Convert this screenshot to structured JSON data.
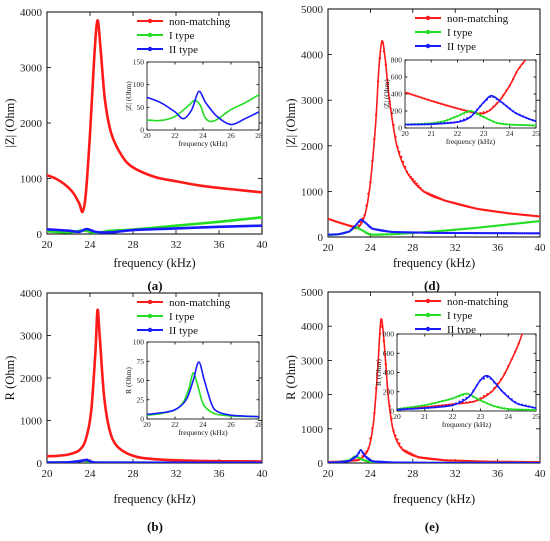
{
  "colors": {
    "non_matching": "#ff1a1a",
    "i_type": "#22dd22",
    "ii_type": "#1a1aff"
  },
  "chart_data": [
    {
      "panel": "(a)",
      "type": "line",
      "xlabel": "frequency (kHz)",
      "ylabel": "|Z| (Ohm)",
      "xlim": [
        20,
        40
      ],
      "ylim": [
        0,
        4000
      ],
      "xticks": [
        20,
        24,
        28,
        32,
        36,
        40
      ],
      "yticks": [
        0,
        1000,
        2000,
        3000,
        4000
      ],
      "legend": "top-right",
      "markers": false,
      "series": [
        {
          "name": "non-matching",
          "x": [
            20,
            20.8,
            21.6,
            22.4,
            23.0,
            23.3,
            23.6,
            24.0,
            24.4,
            24.7,
            25.0,
            25.4,
            26,
            27,
            28,
            30,
            32,
            34,
            36,
            38,
            40
          ],
          "values": [
            1060,
            1000,
            900,
            750,
            550,
            400,
            700,
            1800,
            3200,
            3850,
            3300,
            2400,
            1800,
            1400,
            1200,
            1030,
            950,
            880,
            830,
            790,
            750
          ]
        },
        {
          "name": "I type",
          "x": [
            20,
            22,
            23.4,
            24.5,
            26,
            28,
            32,
            36,
            40
          ],
          "values": [
            50,
            30,
            65,
            20,
            60,
            80,
            150,
            220,
            300
          ]
        },
        {
          "name": "II type",
          "x": [
            20,
            22,
            23.0,
            23.7,
            24.6,
            26,
            28,
            32,
            36,
            40
          ],
          "values": [
            85,
            60,
            40,
            90,
            35,
            30,
            70,
            100,
            130,
            150
          ]
        }
      ],
      "inset": {
        "xlabel": "frequency (kHz)",
        "ylabel": "|Z| (Ohm)",
        "xlim": [
          20,
          28
        ],
        "ylim": [
          0,
          150
        ],
        "xticks": [
          20,
          22,
          24,
          26,
          28
        ],
        "yticks": [
          0,
          50,
          100,
          150
        ],
        "series": [
          {
            "name": "I type",
            "x": [
              20,
              21,
              22,
              23,
              23.4,
              23.8,
              24.2,
              24.8,
              26,
              27,
              28
            ],
            "values": [
              22,
              21,
              30,
              55,
              65,
              55,
              25,
              20,
              45,
              60,
              78
            ]
          },
          {
            "name": "II type",
            "x": [
              20,
              21,
              22,
              22.6,
              23.2,
              23.7,
              24.2,
              25,
              26,
              27,
              28
            ],
            "values": [
              72,
              60,
              40,
              25,
              45,
              85,
              60,
              30,
              12,
              25,
              40
            ]
          }
        ]
      }
    },
    {
      "panel": "(d)",
      "type": "line",
      "xlabel": "frequency (kHz)",
      "ylabel": "|Z| (Ohm)",
      "xlim": [
        20,
        40
      ],
      "ylim": [
        0,
        5000
      ],
      "xticks": [
        20,
        24,
        28,
        32,
        36,
        40
      ],
      "yticks": [
        0,
        1000,
        2000,
        3000,
        4000,
        5000
      ],
      "legend": "top-right",
      "markers": true,
      "series": [
        {
          "name": "non-matching",
          "x": [
            20,
            21,
            22,
            22.8,
            23.5,
            24,
            24.5,
            24.8,
            25.1,
            25.4,
            25.8,
            26.5,
            27.5,
            29,
            31,
            34,
            37,
            40
          ],
          "values": [
            400,
            320,
            250,
            200,
            500,
            1200,
            2500,
            3700,
            4300,
            3900,
            3000,
            2000,
            1400,
            1000,
            800,
            620,
            520,
            450
          ]
        },
        {
          "name": "I type",
          "x": [
            20,
            21,
            22,
            22.6,
            23.2,
            24,
            26,
            30,
            34,
            40
          ],
          "values": [
            40,
            60,
            120,
            220,
            150,
            50,
            60,
            120,
            200,
            350
          ]
        },
        {
          "name": "II type",
          "x": [
            20,
            21,
            22,
            22.6,
            23.1,
            23.6,
            24.2,
            26,
            30,
            34,
            40
          ],
          "values": [
            50,
            60,
            120,
            250,
            380,
            300,
            180,
            110,
            90,
            85,
            80
          ]
        }
      ],
      "inset": {
        "xlabel": "frequency (kHz)",
        "ylabel": "|Z| (Ohm)",
        "xlim": [
          20,
          25
        ],
        "ylim": [
          0,
          800
        ],
        "xticks": [
          20,
          21,
          22,
          23,
          24,
          25
        ],
        "yticks": [
          0,
          200,
          400,
          600,
          800
        ],
        "series": [
          {
            "name": "non-matching",
            "x": [
              20,
              21,
              22,
              22.8,
              23.2,
              23.6,
              24,
              24.3,
              24.6
            ],
            "values": [
              420,
              320,
              230,
              170,
              200,
              320,
              500,
              680,
              800
            ]
          },
          {
            "name": "I type",
            "x": [
              20,
              21,
              21.5,
              22,
              22.5,
              23,
              23.5,
              24,
              25
            ],
            "values": [
              40,
              55,
              80,
              140,
              200,
              130,
              60,
              40,
              30
            ]
          },
          {
            "name": "II type",
            "x": [
              20,
              21,
              22,
              22.5,
              23.0,
              23.3,
              23.7,
              24.2,
              24.7,
              25
            ],
            "values": [
              40,
              45,
              70,
              130,
              300,
              380,
              300,
              180,
              110,
              80
            ]
          }
        ]
      }
    },
    {
      "panel": "(b)",
      "type": "line",
      "xlabel": "frequency (kHz)",
      "ylabel": "R (Ohm)",
      "xlim": [
        20,
        40
      ],
      "ylim": [
        0,
        4000
      ],
      "xticks": [
        20,
        24,
        28,
        32,
        36,
        40
      ],
      "yticks": [
        0,
        1000,
        2000,
        3000,
        4000
      ],
      "legend": "top-right",
      "markers": false,
      "series": [
        {
          "name": "non-matching",
          "x": [
            20,
            21,
            22,
            23,
            23.6,
            24.1,
            24.5,
            24.7,
            24.9,
            25.3,
            25.8,
            26.5,
            28,
            30,
            34,
            40
          ],
          "values": [
            160,
            170,
            200,
            300,
            550,
            1200,
            2600,
            3600,
            3000,
            1600,
            800,
            400,
            170,
            90,
            50,
            35
          ]
        },
        {
          "name": "I type",
          "x": [
            20,
            22,
            23.2,
            23.5,
            24,
            26,
            40
          ],
          "values": [
            10,
            15,
            50,
            60,
            20,
            8,
            5
          ]
        },
        {
          "name": "II type",
          "x": [
            20,
            22,
            23.4,
            23.7,
            24.2,
            26,
            40
          ],
          "values": [
            10,
            15,
            60,
            75,
            25,
            8,
            5
          ]
        }
      ],
      "inset": {
        "xlabel": "frequency (kHz)",
        "ylabel": "R (Ohm)",
        "xlim": [
          20,
          28
        ],
        "ylim": [
          0,
          100
        ],
        "xticks": [
          20,
          22,
          24,
          26,
          28
        ],
        "yticks": [
          0,
          25,
          50,
          75,
          100
        ],
        "series": [
          {
            "name": "I type",
            "x": [
              20,
              21,
              22,
              22.6,
              23.0,
              23.3,
              23.6,
              24.0,
              24.5,
              25,
              26,
              28
            ],
            "values": [
              5,
              7,
              12,
              22,
              40,
              60,
              45,
              20,
              10,
              6,
              4,
              3
            ]
          },
          {
            "name": "II type",
            "x": [
              20,
              21,
              22,
              22.8,
              23.3,
              23.7,
              24.1,
              24.6,
              25,
              26,
              28
            ],
            "values": [
              6,
              8,
              12,
              25,
              50,
              74,
              50,
              20,
              10,
              5,
              3
            ]
          }
        ]
      }
    },
    {
      "panel": "(e)",
      "type": "line",
      "xlabel": "frequency (kHz)",
      "ylabel": "R (Ohm)",
      "xlim": [
        20,
        40
      ],
      "ylim": [
        0,
        5000
      ],
      "xticks": [
        20,
        24,
        28,
        32,
        36,
        40
      ],
      "yticks": [
        0,
        1000,
        2000,
        3000,
        4000,
        5000
      ],
      "legend": "top-right",
      "markers": true,
      "series": [
        {
          "name": "non-matching",
          "x": [
            20,
            21,
            22,
            23,
            23.8,
            24.3,
            24.7,
            25.0,
            25.3,
            25.7,
            26.2,
            27,
            28.5,
            31,
            35,
            40
          ],
          "values": [
            30,
            40,
            60,
            100,
            400,
            1200,
            2800,
            4200,
            3500,
            1900,
            900,
            400,
            170,
            80,
            40,
            25
          ]
        },
        {
          "name": "I type",
          "x": [
            20,
            21,
            22,
            22.6,
            23.2,
            24,
            26,
            30,
            40
          ],
          "values": [
            10,
            25,
            80,
            200,
            100,
            30,
            10,
            5,
            3
          ]
        },
        {
          "name": "II type",
          "x": [
            20,
            21,
            22,
            22.7,
            23.1,
            23.5,
            24.2,
            26,
            30,
            40
          ],
          "values": [
            10,
            20,
            60,
            200,
            380,
            200,
            50,
            15,
            5,
            3
          ]
        }
      ],
      "inset": {
        "xlabel": "frequency (kHz)",
        "ylabel": "R (Ohm)",
        "xlim": [
          20,
          25
        ],
        "ylim": [
          0,
          800
        ],
        "xticks": [
          20,
          21,
          22,
          23,
          24,
          25
        ],
        "yticks": [
          0,
          200,
          400,
          600,
          800
        ],
        "series": [
          {
            "name": "non-matching",
            "x": [
              20,
              21,
              22,
              22.8,
              23.4,
              23.8,
              24.1,
              24.35,
              24.5
            ],
            "values": [
              20,
              40,
              70,
              100,
              200,
              350,
              520,
              680,
              800
            ]
          },
          {
            "name": "I type",
            "x": [
              20,
              21,
              21.6,
              22,
              22.5,
              23,
              23.5,
              24,
              25
            ],
            "values": [
              20,
              60,
              100,
              130,
              180,
              110,
              50,
              20,
              10
            ]
          },
          {
            "name": "II type",
            "x": [
              20,
              21,
              22,
              22.6,
              23.0,
              23.3,
              23.8,
              24.3,
              25
            ],
            "values": [
              15,
              30,
              60,
              150,
              320,
              360,
              200,
              80,
              30
            ]
          }
        ]
      }
    }
  ]
}
